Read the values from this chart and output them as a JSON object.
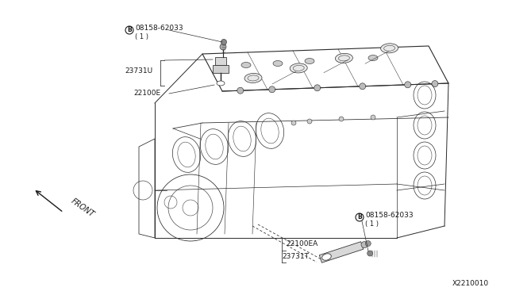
{
  "background_color": "#ffffff",
  "diagram_id": "X2210010",
  "line_color": "#2a2a2a",
  "text_color": "#1a1a1a",
  "font_size": 6.5,
  "fig_width": 6.4,
  "fig_height": 3.72,
  "dpi": 100,
  "labels": {
    "part1_id": "08158-62033",
    "part1_sub": "( 1 )",
    "part2_id": "23731U",
    "part3_id": "22100E",
    "part4_id": "08158-62033",
    "part4_sub": "( 1 )",
    "part5_id": "22100EA",
    "part6_id": "23731T",
    "front_label": "FRONT"
  }
}
